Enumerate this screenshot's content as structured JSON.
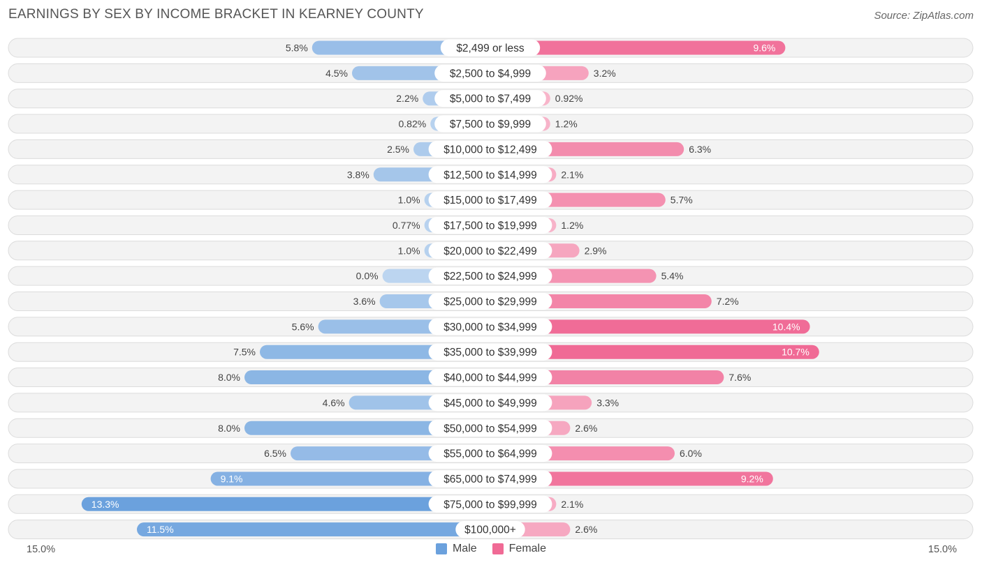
{
  "title": "EARNINGS BY SEX BY INCOME BRACKET IN KEARNEY COUNTY",
  "source": "Source: ZipAtlas.com",
  "colors": {
    "male": "#6ba1dd",
    "female": "#f06a95"
  },
  "legend": {
    "male": "Male",
    "female": "Female"
  },
  "axis": {
    "left_label": "15.0%",
    "right_label": "15.0%"
  },
  "chart_data": {
    "type": "bar",
    "orientation": "horizontal-diverging",
    "title": "EARNINGS BY SEX BY INCOME BRACKET IN KEARNEY COUNTY",
    "xlim": [
      -15.0,
      15.0
    ],
    "categories": [
      "$2,499 or less",
      "$2,500 to $4,999",
      "$5,000 to $7,499",
      "$7,500 to $9,999",
      "$10,000 to $12,499",
      "$12,500 to $14,999",
      "$15,000 to $17,499",
      "$17,500 to $19,999",
      "$20,000 to $22,499",
      "$22,500 to $24,999",
      "$25,000 to $29,999",
      "$30,000 to $34,999",
      "$35,000 to $39,999",
      "$40,000 to $44,999",
      "$45,000 to $49,999",
      "$50,000 to $54,999",
      "$55,000 to $64,999",
      "$65,000 to $74,999",
      "$75,000 to $99,999",
      "$100,000+"
    ],
    "series": [
      {
        "name": "Male",
        "values": [
          5.8,
          4.5,
          2.2,
          0.82,
          2.5,
          3.8,
          1.0,
          0.77,
          1.0,
          0.0,
          3.6,
          5.6,
          7.5,
          8.0,
          4.6,
          8.0,
          6.5,
          9.1,
          13.3,
          11.5
        ],
        "labels": [
          "5.8%",
          "4.5%",
          "2.2%",
          "0.82%",
          "2.5%",
          "3.8%",
          "1.0%",
          "0.77%",
          "1.0%",
          "0.0%",
          "3.6%",
          "5.6%",
          "7.5%",
          "8.0%",
          "4.6%",
          "8.0%",
          "6.5%",
          "9.1%",
          "13.3%",
          "11.5%"
        ]
      },
      {
        "name": "Female",
        "values": [
          9.6,
          3.2,
          0.92,
          1.2,
          6.3,
          2.1,
          5.7,
          1.2,
          2.9,
          5.4,
          7.2,
          10.4,
          10.7,
          7.6,
          3.3,
          2.6,
          6.0,
          9.2,
          2.1,
          2.6
        ],
        "labels": [
          "9.6%",
          "3.2%",
          "0.92%",
          "1.2%",
          "6.3%",
          "2.1%",
          "5.7%",
          "1.2%",
          "2.9%",
          "5.4%",
          "7.2%",
          "10.4%",
          "10.7%",
          "7.6%",
          "3.3%",
          "2.6%",
          "6.0%",
          "9.2%",
          "2.1%",
          "2.6%"
        ]
      }
    ]
  }
}
